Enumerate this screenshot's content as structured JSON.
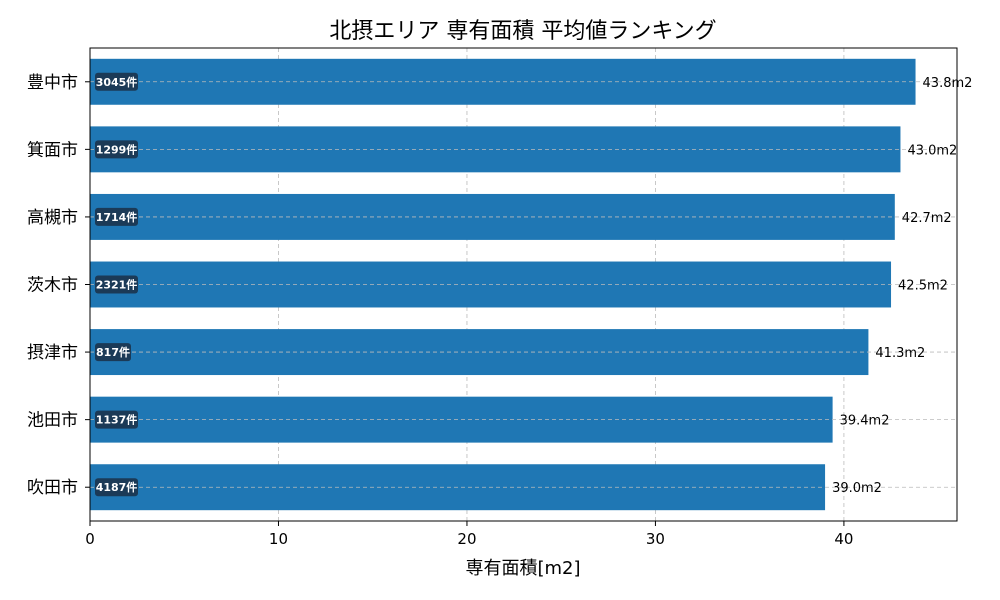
{
  "chart_data": {
    "type": "bar",
    "orientation": "horizontal",
    "title": "北摂エリア 専有面積 平均値ランキング",
    "xlabel": "専有面積[m2]",
    "ylabel": "",
    "xlim": [
      0,
      46
    ],
    "xticks": [
      0,
      10,
      20,
      30,
      40
    ],
    "grid": true,
    "categories": [
      "豊中市",
      "箕面市",
      "高槻市",
      "茨木市",
      "摂津市",
      "池田市",
      "吹田市"
    ],
    "values": [
      43.8,
      43.0,
      42.7,
      42.5,
      41.3,
      39.4,
      39.0
    ],
    "value_labels": [
      "43.8m2",
      "43.0m2",
      "42.7m2",
      "42.5m2",
      "41.3m2",
      "39.4m2",
      "39.0m2"
    ],
    "count_labels": [
      "3045件",
      "1299件",
      "1714件",
      "2321件",
      "817件",
      "1137件",
      "4187件"
    ],
    "bar_color": "#1f77b4",
    "badge_color": "#1b3a57"
  }
}
